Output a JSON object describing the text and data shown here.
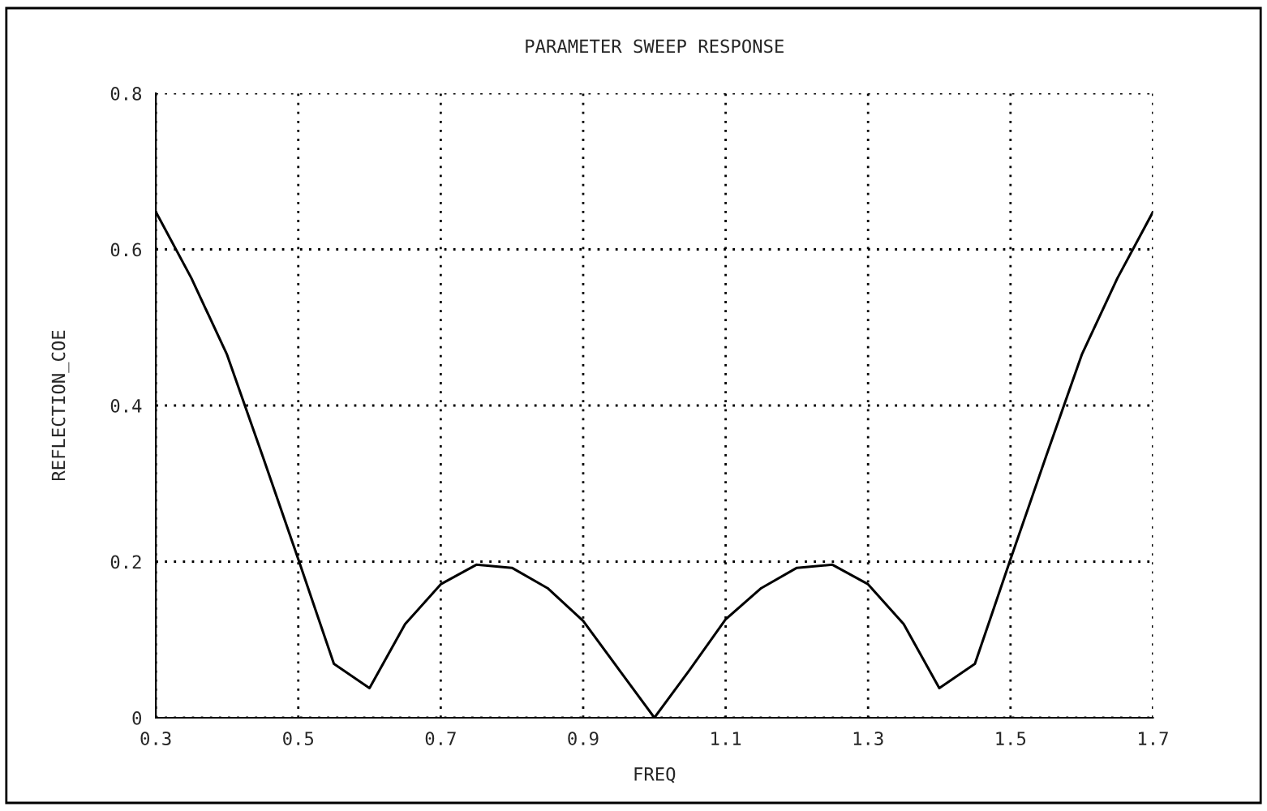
{
  "chart_data": {
    "type": "line",
    "title": "PARAMETER SWEEP RESPONSE",
    "xlabel": "FREQ",
    "ylabel": "REFLECTION_COE",
    "x": [
      0.3,
      0.35,
      0.4,
      0.45,
      0.5,
      0.55,
      0.6,
      0.65,
      0.7,
      0.75,
      0.8,
      0.85,
      0.9,
      0.95,
      1.0,
      1.05,
      1.1,
      1.15,
      1.2,
      1.25,
      1.3,
      1.35,
      1.4,
      1.45,
      1.5,
      1.55,
      1.6,
      1.65,
      1.7
    ],
    "series": [
      {
        "color": "#000000",
        "values": [
          0.648,
          0.563,
          0.465,
          0.335,
          0.203,
          0.069,
          0.038,
          0.12,
          0.171,
          0.196,
          0.192,
          0.166,
          0.124,
          0.062,
          0.0,
          0.062,
          0.126,
          0.166,
          0.192,
          0.196,
          0.171,
          0.12,
          0.038,
          0.069,
          0.203,
          0.335,
          0.465,
          0.563,
          0.648
        ]
      }
    ],
    "xlim": [
      0.3,
      1.7
    ],
    "xticks": [
      0.3,
      0.5,
      0.7,
      0.9,
      1.1,
      1.3,
      1.5,
      1.7
    ],
    "ylim": [
      0,
      0.8
    ],
    "yticks": [
      0,
      0.2,
      0.4,
      0.6,
      0.8
    ],
    "grid": true,
    "line_style": "solid",
    "marker": "none"
  }
}
